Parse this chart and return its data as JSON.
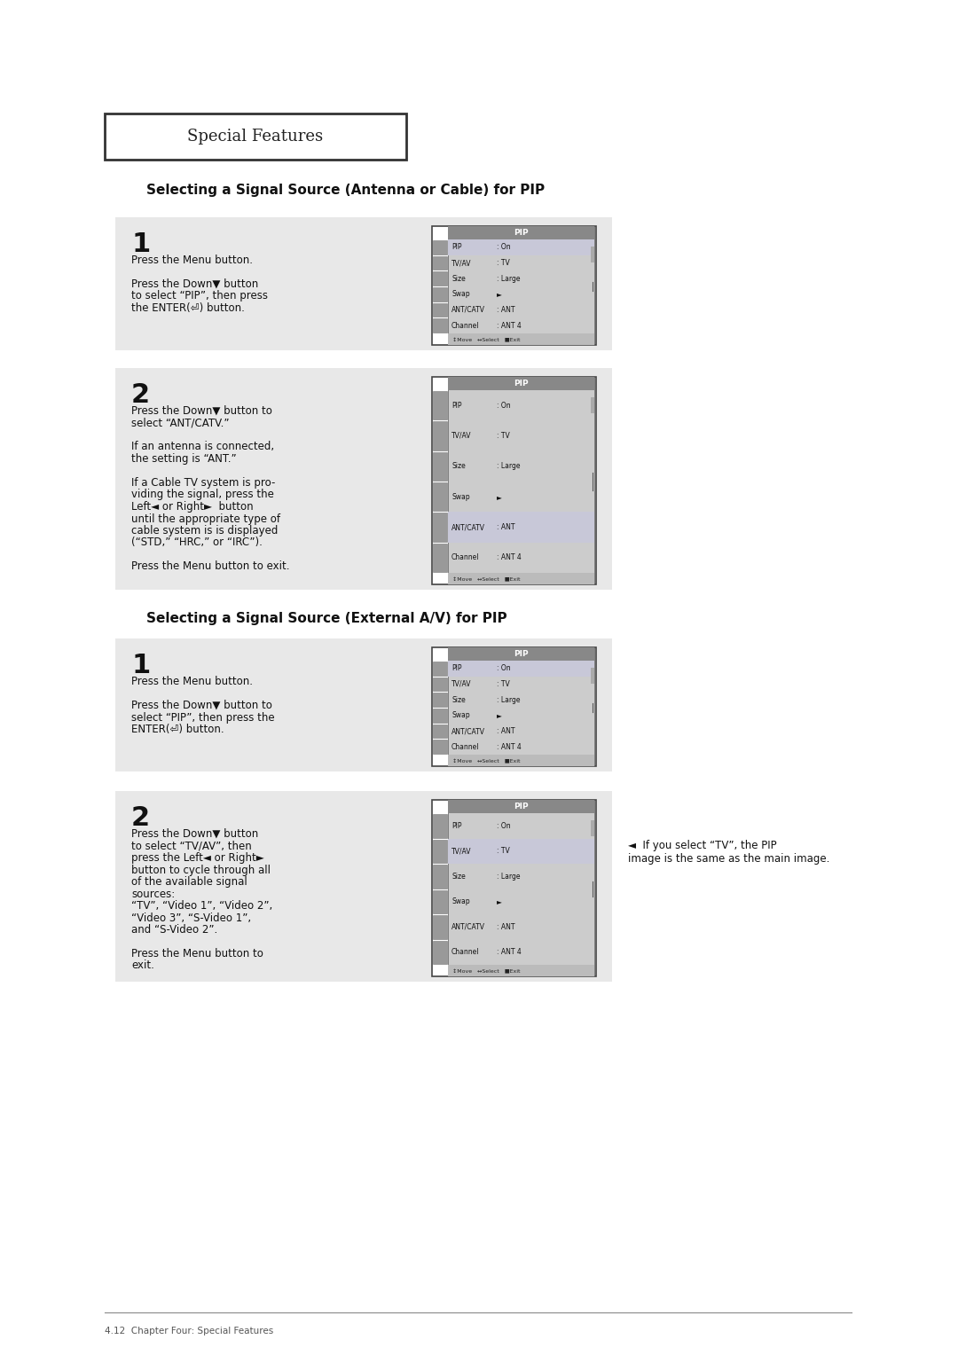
{
  "bg_color": "#ffffff",
  "page_title": "Special Features",
  "section1_title": "Selecting a Signal Source (Antenna or Cable) for PIP",
  "section2_title": "Selecting a Signal Source (External A/V) for PIP",
  "footer_text": "4.12  Chapter Four: Special Features",
  "box1_text_lines": [
    "Press the Menu button.",
    "",
    "Press the Down▼ button",
    "to select “PIP”, then press",
    "the ENTER(⏎) button."
  ],
  "box2_text_lines": [
    "Press the Down▼ button to",
    "select “ANT/CATV.”",
    "",
    "If an antenna is connected,",
    "the setting is “ANT.”",
    "",
    "If a Cable TV system is pro-",
    "viding the signal, press the",
    "Left◄ or Right►  button",
    "until the appropriate type of",
    "cable system is is displayed",
    "(“STD,” “HRC,” or “IRC”).",
    "",
    "Press the Menu button to exit."
  ],
  "box3_text_lines": [
    "Press the Menu button.",
    "",
    "Press the Down▼ button to",
    "select “PIP”, then press the",
    "ENTER(⏎) button."
  ],
  "box4_text_lines": [
    "Press the Down▼ button",
    "to select “TV/AV”, then",
    "press the Left◄ or Right►",
    "button to cycle through all",
    "of the available signal",
    "sources:",
    "“TV”, “Video 1”, “Video 2”,",
    "“Video 3”, “S-Video 1”,",
    "and “S-Video 2”.",
    "",
    "Press the Menu button to",
    "exit."
  ],
  "note_text_line1": "◄  If you select “TV”, the PIP",
  "note_text_line2": "image is the same as the main image.",
  "pip_rows": [
    [
      "PIP",
      ": On",
      true
    ],
    [
      "TV/AV",
      ": TV",
      false
    ],
    [
      "Size",
      ": Large",
      false
    ],
    [
      "Swap",
      "►",
      false
    ],
    [
      "ANT/CATV",
      ": ANT",
      false
    ],
    [
      "Channel",
      ": ANT 4",
      false
    ]
  ],
  "pip_rows_b2": [
    [
      "PIP",
      ": On",
      false
    ],
    [
      "TV/AV",
      ": TV",
      false
    ],
    [
      "Size",
      ": Large",
      false
    ],
    [
      "Swap",
      "►",
      false
    ],
    [
      "ANT/CATV",
      ": ANT",
      true
    ],
    [
      "Channel",
      ": ANT 4",
      false
    ]
  ],
  "pip_rows_b3": [
    [
      "PIP",
      ": On",
      true
    ],
    [
      "TV/AV",
      ": TV",
      false
    ],
    [
      "Size",
      ": Large",
      false
    ],
    [
      "Swap",
      "►",
      false
    ],
    [
      "ANT/CATV",
      ": ANT",
      false
    ],
    [
      "Channel",
      ": ANT 4",
      false
    ]
  ],
  "pip_rows_b4": [
    [
      "PIP",
      ": On",
      false
    ],
    [
      "TV/AV",
      ": TV",
      true
    ],
    [
      "Size",
      ": Large",
      false
    ],
    [
      "Swap",
      "►",
      false
    ],
    [
      "ANT/CATV",
      ": ANT",
      false
    ],
    [
      "Channel",
      ": ANT 4",
      false
    ]
  ],
  "panel_bg": "#e8e8e8",
  "highlight_bg": "#d8d8d8",
  "menu_title_bg": "#888888",
  "icon_bg": "#999999",
  "scrollbar_bg": "#aaaaaa",
  "status_bar_bg": "#c0c0c0",
  "menu_outer_bg": "#cccccc",
  "highlight_row_color": "#d0d0e8"
}
